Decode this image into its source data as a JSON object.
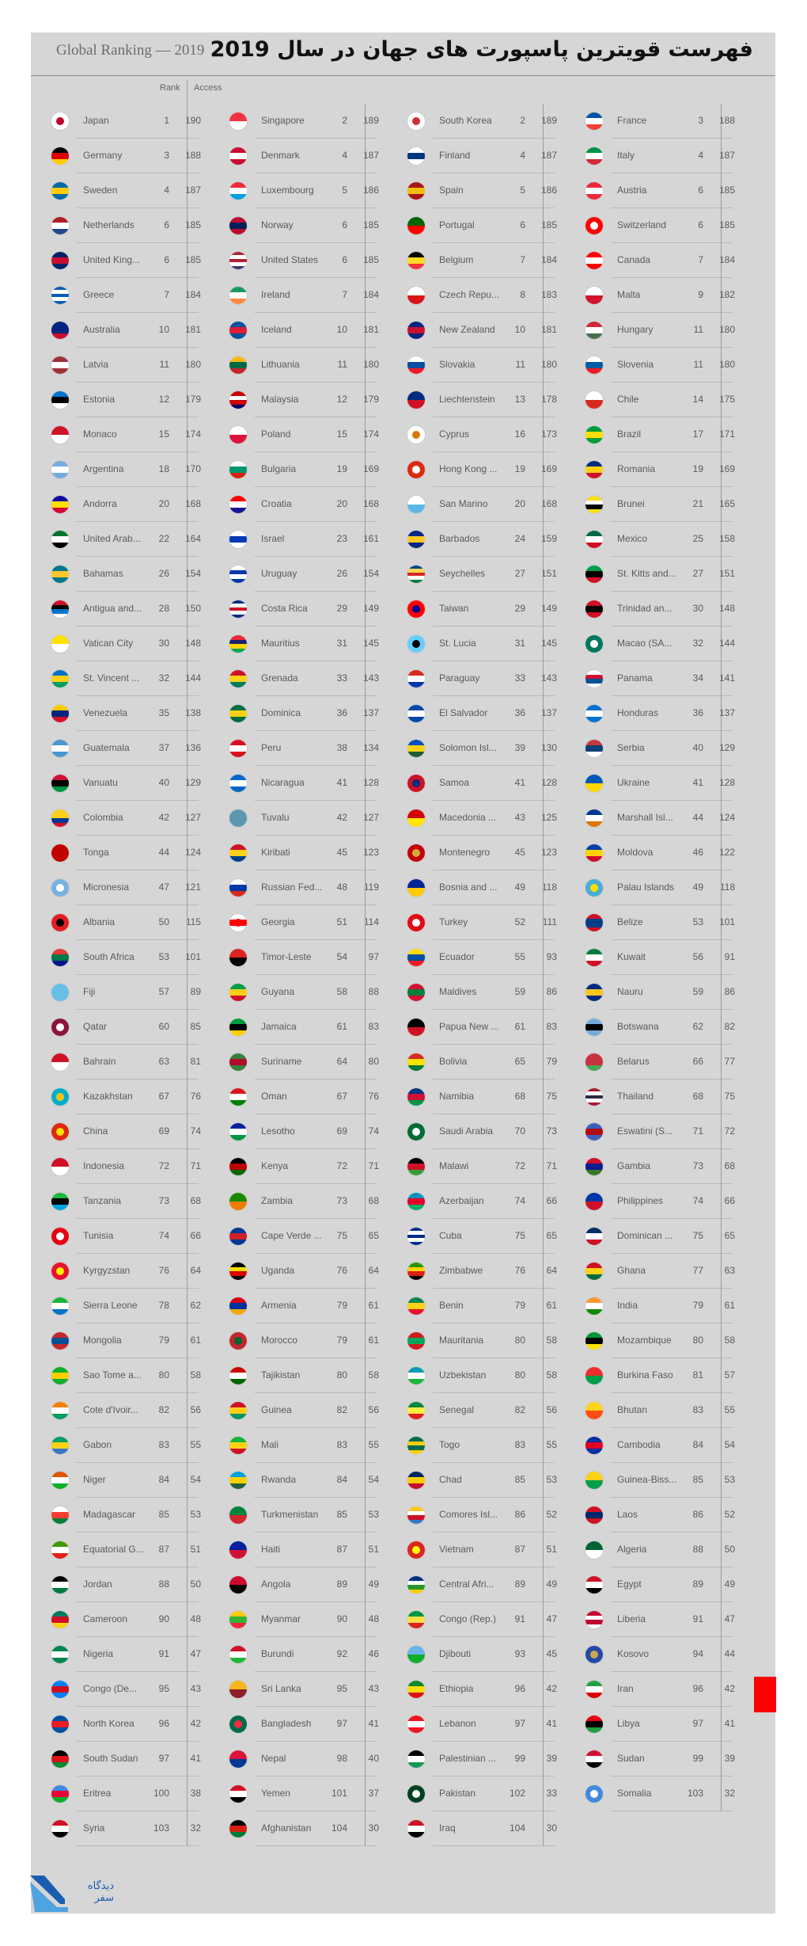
{
  "header": {
    "subtitle": "Global Ranking — 2019",
    "title": "فهرست قویترین پاسپورت های جهان در سال 2019"
  },
  "columns_header": {
    "rank": "Rank",
    "access": "Access"
  },
  "colors": {
    "highlight": "#ff0000",
    "background": "#d6d6d6",
    "logo": "#1a5db0"
  },
  "countries": [
    {
      "name": "Japan",
      "rank": "1",
      "access": "190"
    },
    {
      "name": "Germany",
      "rank": "3",
      "access": "188"
    },
    {
      "name": "Sweden",
      "rank": "4",
      "access": "187"
    },
    {
      "name": "Netherlands",
      "rank": "6",
      "access": "185"
    },
    {
      "name": "United King...",
      "rank": "6",
      "access": "185"
    },
    {
      "name": "Greece",
      "rank": "7",
      "access": "184"
    },
    {
      "name": "Australia",
      "rank": "10",
      "access": "181"
    },
    {
      "name": "Latvia",
      "rank": "11",
      "access": "180"
    },
    {
      "name": "Estonia",
      "rank": "12",
      "access": "179"
    },
    {
      "name": "Monaco",
      "rank": "15",
      "access": "174"
    },
    {
      "name": "Argentina",
      "rank": "18",
      "access": "170"
    },
    {
      "name": "Andorra",
      "rank": "20",
      "access": "168"
    },
    {
      "name": "United Arab...",
      "rank": "22",
      "access": "164"
    },
    {
      "name": "Bahamas",
      "rank": "26",
      "access": "154"
    },
    {
      "name": "Antigua and...",
      "rank": "28",
      "access": "150"
    },
    {
      "name": "Vatican City",
      "rank": "30",
      "access": "148"
    },
    {
      "name": "St. Vincent ...",
      "rank": "32",
      "access": "144"
    },
    {
      "name": "Venezuela",
      "rank": "35",
      "access": "138"
    },
    {
      "name": "Guatemala",
      "rank": "37",
      "access": "136"
    },
    {
      "name": "Vanuatu",
      "rank": "40",
      "access": "129"
    },
    {
      "name": "Colombia",
      "rank": "42",
      "access": "127"
    },
    {
      "name": "Tonga",
      "rank": "44",
      "access": "124"
    },
    {
      "name": "Micronesia",
      "rank": "47",
      "access": "121"
    },
    {
      "name": "Albania",
      "rank": "50",
      "access": "115"
    },
    {
      "name": "South Africa",
      "rank": "53",
      "access": "101"
    },
    {
      "name": "Fiji",
      "rank": "57",
      "access": "89"
    },
    {
      "name": "Qatar",
      "rank": "60",
      "access": "85"
    },
    {
      "name": "Bahrain",
      "rank": "63",
      "access": "81"
    },
    {
      "name": "Kazakhstan",
      "rank": "67",
      "access": "76"
    },
    {
      "name": "China",
      "rank": "69",
      "access": "74"
    },
    {
      "name": "Indonesia",
      "rank": "72",
      "access": "71"
    },
    {
      "name": "Tanzania",
      "rank": "73",
      "access": "68"
    },
    {
      "name": "Tunisia",
      "rank": "74",
      "access": "66"
    },
    {
      "name": "Kyrgyzstan",
      "rank": "76",
      "access": "64"
    },
    {
      "name": "Sierra Leone",
      "rank": "78",
      "access": "62"
    },
    {
      "name": "Mongolia",
      "rank": "79",
      "access": "61"
    },
    {
      "name": "Sao Tome a...",
      "rank": "80",
      "access": "58"
    },
    {
      "name": "Cote d'Ivoir...",
      "rank": "82",
      "access": "56"
    },
    {
      "name": "Gabon",
      "rank": "83",
      "access": "55"
    },
    {
      "name": "Niger",
      "rank": "84",
      "access": "54"
    },
    {
      "name": "Madagascar",
      "rank": "85",
      "access": "53"
    },
    {
      "name": "Equatorial G...",
      "rank": "87",
      "access": "51"
    },
    {
      "name": "Jordan",
      "rank": "88",
      "access": "50"
    },
    {
      "name": "Cameroon",
      "rank": "90",
      "access": "48"
    },
    {
      "name": "Nigeria",
      "rank": "91",
      "access": "47"
    },
    {
      "name": "Congo (De...",
      "rank": "95",
      "access": "43"
    },
    {
      "name": "North Korea",
      "rank": "96",
      "access": "42"
    },
    {
      "name": "South Sudan",
      "rank": "97",
      "access": "41"
    },
    {
      "name": "Eritrea",
      "rank": "100",
      "access": "38"
    },
    {
      "name": "Syria",
      "rank": "103",
      "access": "32"
    },
    {
      "name": "Singapore",
      "rank": "2",
      "access": "189"
    },
    {
      "name": "Denmark",
      "rank": "4",
      "access": "187"
    },
    {
      "name": "Luxembourg",
      "rank": "5",
      "access": "186"
    },
    {
      "name": "Norway",
      "rank": "6",
      "access": "185"
    },
    {
      "name": "United States",
      "rank": "6",
      "access": "185"
    },
    {
      "name": "Ireland",
      "rank": "7",
      "access": "184"
    },
    {
      "name": "Iceland",
      "rank": "10",
      "access": "181"
    },
    {
      "name": "Lithuania",
      "rank": "11",
      "access": "180"
    },
    {
      "name": "Malaysia",
      "rank": "12",
      "access": "179"
    },
    {
      "name": "Poland",
      "rank": "15",
      "access": "174"
    },
    {
      "name": "Bulgaria",
      "rank": "19",
      "access": "169"
    },
    {
      "name": "Croatia",
      "rank": "20",
      "access": "168"
    },
    {
      "name": "Israel",
      "rank": "23",
      "access": "161"
    },
    {
      "name": "Uruguay",
      "rank": "26",
      "access": "154"
    },
    {
      "name": "Costa Rica",
      "rank": "29",
      "access": "149"
    },
    {
      "name": "Mauritius",
      "rank": "31",
      "access": "145"
    },
    {
      "name": "Grenada",
      "rank": "33",
      "access": "143"
    },
    {
      "name": "Dominica",
      "rank": "36",
      "access": "137"
    },
    {
      "name": "Peru",
      "rank": "38",
      "access": "134"
    },
    {
      "name": "Nicaragua",
      "rank": "41",
      "access": "128"
    },
    {
      "name": "Tuvalu",
      "rank": "42",
      "access": "127"
    },
    {
      "name": "Kiribati",
      "rank": "45",
      "access": "123"
    },
    {
      "name": "Russian Fed...",
      "rank": "48",
      "access": "119"
    },
    {
      "name": "Georgia",
      "rank": "51",
      "access": "114"
    },
    {
      "name": "Timor-Leste",
      "rank": "54",
      "access": "97"
    },
    {
      "name": "Guyana",
      "rank": "58",
      "access": "88"
    },
    {
      "name": "Jamaica",
      "rank": "61",
      "access": "83"
    },
    {
      "name": "Suriname",
      "rank": "64",
      "access": "80"
    },
    {
      "name": "Oman",
      "rank": "67",
      "access": "76"
    },
    {
      "name": "Lesotho",
      "rank": "69",
      "access": "74"
    },
    {
      "name": "Kenya",
      "rank": "72",
      "access": "71"
    },
    {
      "name": "Zambia",
      "rank": "73",
      "access": "68"
    },
    {
      "name": "Cape Verde ...",
      "rank": "75",
      "access": "65"
    },
    {
      "name": "Uganda",
      "rank": "76",
      "access": "64"
    },
    {
      "name": "Armenia",
      "rank": "79",
      "access": "61"
    },
    {
      "name": "Morocco",
      "rank": "79",
      "access": "61"
    },
    {
      "name": "Tajikistan",
      "rank": "80",
      "access": "58"
    },
    {
      "name": "Guinea",
      "rank": "82",
      "access": "56"
    },
    {
      "name": "Mali",
      "rank": "83",
      "access": "55"
    },
    {
      "name": "Rwanda",
      "rank": "84",
      "access": "54"
    },
    {
      "name": "Turkmenistan",
      "rank": "85",
      "access": "53"
    },
    {
      "name": "Haiti",
      "rank": "87",
      "access": "51"
    },
    {
      "name": "Angola",
      "rank": "89",
      "access": "49"
    },
    {
      "name": "Myanmar",
      "rank": "90",
      "access": "48"
    },
    {
      "name": "Burundi",
      "rank": "92",
      "access": "46"
    },
    {
      "name": "Sri Lanka",
      "rank": "95",
      "access": "43"
    },
    {
      "name": "Bangladesh",
      "rank": "97",
      "access": "41"
    },
    {
      "name": "Nepal",
      "rank": "98",
      "access": "40"
    },
    {
      "name": "Yemen",
      "rank": "101",
      "access": "37"
    },
    {
      "name": "Afghanistan",
      "rank": "104",
      "access": "30"
    },
    {
      "name": "South Korea",
      "rank": "2",
      "access": "189"
    },
    {
      "name": "Finland",
      "rank": "4",
      "access": "187"
    },
    {
      "name": "Spain",
      "rank": "5",
      "access": "186"
    },
    {
      "name": "Portugal",
      "rank": "6",
      "access": "185"
    },
    {
      "name": "Belgium",
      "rank": "7",
      "access": "184"
    },
    {
      "name": "Czech Repu...",
      "rank": "8",
      "access": "183"
    },
    {
      "name": "New Zealand",
      "rank": "10",
      "access": "181"
    },
    {
      "name": "Slovakia",
      "rank": "11",
      "access": "180"
    },
    {
      "name": "Liechtenstein",
      "rank": "13",
      "access": "178"
    },
    {
      "name": "Cyprus",
      "rank": "16",
      "access": "173"
    },
    {
      "name": "Hong Kong ...",
      "rank": "19",
      "access": "169"
    },
    {
      "name": "San Marino",
      "rank": "20",
      "access": "168"
    },
    {
      "name": "Barbados",
      "rank": "24",
      "access": "159"
    },
    {
      "name": "Seychelles",
      "rank": "27",
      "access": "151"
    },
    {
      "name": "Taiwan",
      "rank": "29",
      "access": "149"
    },
    {
      "name": "St. Lucia",
      "rank": "31",
      "access": "145"
    },
    {
      "name": "Paraguay",
      "rank": "33",
      "access": "143"
    },
    {
      "name": "El Salvador",
      "rank": "36",
      "access": "137"
    },
    {
      "name": "Solomon Isl...",
      "rank": "39",
      "access": "130"
    },
    {
      "name": "Samoa",
      "rank": "41",
      "access": "128"
    },
    {
      "name": "Macedonia ...",
      "rank": "43",
      "access": "125"
    },
    {
      "name": "Montenegro",
      "rank": "45",
      "access": "123"
    },
    {
      "name": "Bosnia and ...",
      "rank": "49",
      "access": "118"
    },
    {
      "name": "Turkey",
      "rank": "52",
      "access": "111"
    },
    {
      "name": "Ecuador",
      "rank": "55",
      "access": "93"
    },
    {
      "name": "Maldives",
      "rank": "59",
      "access": "86"
    },
    {
      "name": "Papua New ...",
      "rank": "61",
      "access": "83"
    },
    {
      "name": "Bolivia",
      "rank": "65",
      "access": "79"
    },
    {
      "name": "Namibia",
      "rank": "68",
      "access": "75"
    },
    {
      "name": "Saudi Arabia",
      "rank": "70",
      "access": "73"
    },
    {
      "name": "Malawi",
      "rank": "72",
      "access": "71"
    },
    {
      "name": "Azerbaijan",
      "rank": "74",
      "access": "66"
    },
    {
      "name": "Cuba",
      "rank": "75",
      "access": "65"
    },
    {
      "name": "Zimbabwe",
      "rank": "76",
      "access": "64"
    },
    {
      "name": "Benin",
      "rank": "79",
      "access": "61"
    },
    {
      "name": "Mauritania",
      "rank": "80",
      "access": "58"
    },
    {
      "name": "Uzbekistan",
      "rank": "80",
      "access": "58"
    },
    {
      "name": "Senegal",
      "rank": "82",
      "access": "56"
    },
    {
      "name": "Togo",
      "rank": "83",
      "access": "55"
    },
    {
      "name": "Chad",
      "rank": "85",
      "access": "53"
    },
    {
      "name": "Comores Isl...",
      "rank": "86",
      "access": "52"
    },
    {
      "name": "Vietnam",
      "rank": "87",
      "access": "51"
    },
    {
      "name": "Central Afri...",
      "rank": "89",
      "access": "49"
    },
    {
      "name": "Congo (Rep.)",
      "rank": "91",
      "access": "47"
    },
    {
      "name": "Djibouti",
      "rank": "93",
      "access": "45"
    },
    {
      "name": "Ethiopia",
      "rank": "96",
      "access": "42"
    },
    {
      "name": "Lebanon",
      "rank": "97",
      "access": "41"
    },
    {
      "name": "Palestinian ...",
      "rank": "99",
      "access": "39"
    },
    {
      "name": "Pakistan",
      "rank": "102",
      "access": "33"
    },
    {
      "name": "Iraq",
      "rank": "104",
      "access": "30"
    },
    {
      "name": "France",
      "rank": "3",
      "access": "188"
    },
    {
      "name": "Italy",
      "rank": "4",
      "access": "187"
    },
    {
      "name": "Austria",
      "rank": "6",
      "access": "185"
    },
    {
      "name": "Switzerland",
      "rank": "6",
      "access": "185"
    },
    {
      "name": "Canada",
      "rank": "7",
      "access": "184"
    },
    {
      "name": "Malta",
      "rank": "9",
      "access": "182"
    },
    {
      "name": "Hungary",
      "rank": "11",
      "access": "180"
    },
    {
      "name": "Slovenia",
      "rank": "11",
      "access": "180"
    },
    {
      "name": "Chile",
      "rank": "14",
      "access": "175"
    },
    {
      "name": "Brazil",
      "rank": "17",
      "access": "171"
    },
    {
      "name": "Romania",
      "rank": "19",
      "access": "169"
    },
    {
      "name": "Brunei",
      "rank": "21",
      "access": "165"
    },
    {
      "name": "Mexico",
      "rank": "25",
      "access": "158"
    },
    {
      "name": "St. Kitts and...",
      "rank": "27",
      "access": "151"
    },
    {
      "name": "Trinidad an...",
      "rank": "30",
      "access": "148"
    },
    {
      "name": "Macao (SA...",
      "rank": "32",
      "access": "144"
    },
    {
      "name": "Panama",
      "rank": "34",
      "access": "141"
    },
    {
      "name": "Honduras",
      "rank": "36",
      "access": "137"
    },
    {
      "name": "Serbia",
      "rank": "40",
      "access": "129"
    },
    {
      "name": "Ukraine",
      "rank": "41",
      "access": "128"
    },
    {
      "name": "Marshall Isl...",
      "rank": "44",
      "access": "124"
    },
    {
      "name": "Moldova",
      "rank": "46",
      "access": "122"
    },
    {
      "name": "Palau Islands",
      "rank": "49",
      "access": "118"
    },
    {
      "name": "Belize",
      "rank": "53",
      "access": "101"
    },
    {
      "name": "Kuwait",
      "rank": "56",
      "access": "91"
    },
    {
      "name": "Nauru",
      "rank": "59",
      "access": "86"
    },
    {
      "name": "Botswana",
      "rank": "62",
      "access": "82"
    },
    {
      "name": "Belarus",
      "rank": "66",
      "access": "77"
    },
    {
      "name": "Thailand",
      "rank": "68",
      "access": "75"
    },
    {
      "name": "Eswatini (S...",
      "rank": "71",
      "access": "72"
    },
    {
      "name": "Gambia",
      "rank": "73",
      "access": "68"
    },
    {
      "name": "Philippines",
      "rank": "74",
      "access": "66"
    },
    {
      "name": "Dominican ...",
      "rank": "75",
      "access": "65"
    },
    {
      "name": "Ghana",
      "rank": "77",
      "access": "63"
    },
    {
      "name": "India",
      "rank": "79",
      "access": "61"
    },
    {
      "name": "Mozambique",
      "rank": "80",
      "access": "58"
    },
    {
      "name": "Burkina Faso",
      "rank": "81",
      "access": "57"
    },
    {
      "name": "Bhutan",
      "rank": "83",
      "access": "55"
    },
    {
      "name": "Cambodia",
      "rank": "84",
      "access": "54"
    },
    {
      "name": "Guinea-Biss...",
      "rank": "85",
      "access": "53"
    },
    {
      "name": "Laos",
      "rank": "86",
      "access": "52"
    },
    {
      "name": "Algeria",
      "rank": "88",
      "access": "50"
    },
    {
      "name": "Egypt",
      "rank": "89",
      "access": "49"
    },
    {
      "name": "Liberia",
      "rank": "91",
      "access": "47"
    },
    {
      "name": "Kosovo",
      "rank": "94",
      "access": "44"
    },
    {
      "name": "Iran",
      "rank": "96",
      "access": "42"
    },
    {
      "name": "Libya",
      "rank": "97",
      "access": "41"
    },
    {
      "name": "Sudan",
      "rank": "99",
      "access": "39"
    },
    {
      "name": "Somalia",
      "rank": "103",
      "access": "32"
    }
  ],
  "logo": {
    "text": "دیدگاه سفر"
  }
}
